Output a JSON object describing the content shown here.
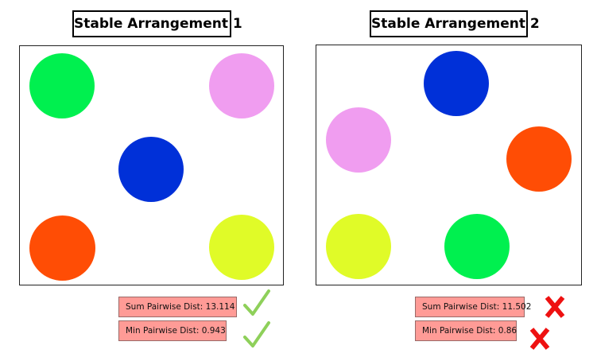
{
  "panels": [
    {
      "title": "Stable Arrangement 1",
      "circles": [
        {
          "color": "#00f04f"
        },
        {
          "color": "#f09df0"
        },
        {
          "color": "#0030d8"
        },
        {
          "color": "#ff4d05"
        },
        {
          "color": "#e0fb28"
        }
      ],
      "metrics": {
        "sum": {
          "label": "Sum Pairwise Dist: 13.114",
          "status": "pass",
          "icon": "check-icon"
        },
        "min": {
          "label": "Min Pairwise Dist: 0.943",
          "status": "pass",
          "icon": "check-icon"
        }
      }
    },
    {
      "title": "Stable Arrangement 2",
      "circles": [
        {
          "color": "#0030d8"
        },
        {
          "color": "#f09df0"
        },
        {
          "color": "#ff4d05"
        },
        {
          "color": "#e0fb28"
        },
        {
          "color": "#00f04f"
        }
      ],
      "metrics": {
        "sum": {
          "label": "Sum Pairwise Dist: 11.502",
          "status": "fail",
          "icon": "cross-icon"
        },
        "min": {
          "label": "Min Pairwise Dist: 0.86",
          "status": "fail",
          "icon": "cross-icon"
        }
      }
    }
  ],
  "colors": {
    "metric_box_bg": "#ff9b96",
    "check": "#8ed05a",
    "cross": "#ee1111"
  }
}
